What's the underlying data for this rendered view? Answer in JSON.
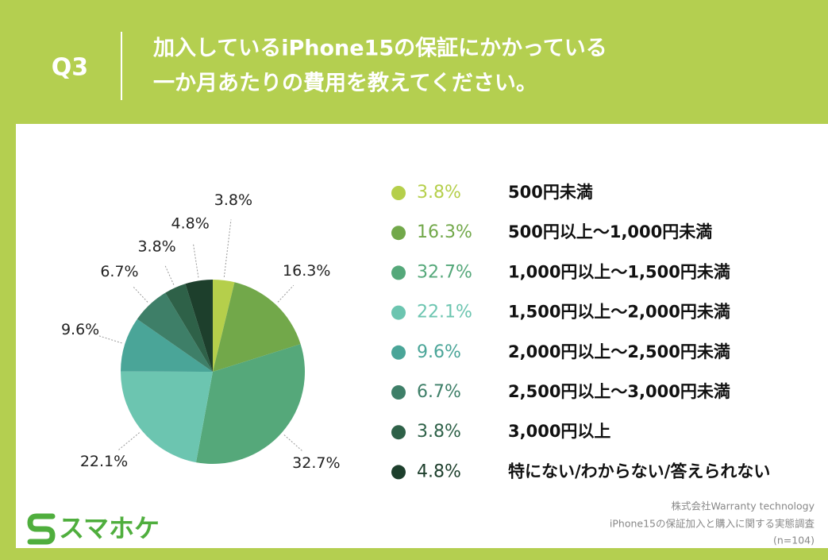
{
  "chart_data": {
    "type": "pie",
    "question": "Q3",
    "title_lines": [
      "加入しているiPhone15の保証にかかっている",
      "一か月あたりの費用を教えてください。"
    ],
    "categories": [
      "500円未満",
      "500円以上〜1,000円未満",
      "1,000円以上〜1,500円未満",
      "1,500円以上〜2,000円未満",
      "2,000円以上〜2,500円未満",
      "2,500円以上〜3,000円未満",
      "3,000円以上",
      "特にない/わからない/答えられない"
    ],
    "values": [
      3.8,
      16.3,
      32.7,
      22.1,
      9.6,
      6.7,
      3.8,
      4.8
    ],
    "value_labels": [
      "3.8%",
      "16.3%",
      "32.7%",
      "22.1%",
      "9.6%",
      "6.7%",
      "3.8%",
      "4.8%"
    ],
    "colors": [
      "#b5cf4b",
      "#72a84a",
      "#55a87a",
      "#6cc5b0",
      "#4aa598",
      "#3e7f68",
      "#2e6148",
      "#1d3f2c"
    ],
    "logo": "スマホケ",
    "source_lines": [
      "株式会社Warranty technology",
      "iPhone15の保証加入と購入に関する実態調査",
      "(n=104)"
    ]
  }
}
